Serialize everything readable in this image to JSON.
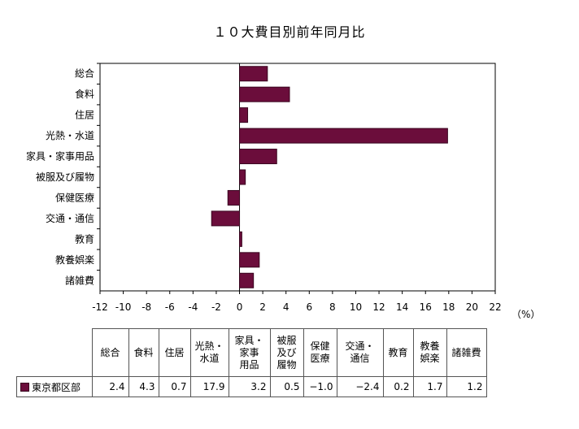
{
  "title": "１０大費目別前年同月比",
  "unit": "（%）",
  "colors": {
    "bar": "#6b0d3b",
    "bar_stroke": "#3a0620",
    "plot_border": "#000000"
  },
  "chart_data": {
    "type": "bar",
    "orientation": "horizontal",
    "title": "１０大費目別前年同月比",
    "categories": [
      "総合",
      "食料",
      "住居",
      "光熱・水道",
      "家具・家事用品",
      "被服及び履物",
      "保健医療",
      "交通・通信",
      "教育",
      "教養娯楽",
      "諸雑費"
    ],
    "series": [
      {
        "name": "東京都区部",
        "values": [
          2.4,
          4.3,
          0.7,
          17.9,
          3.2,
          0.5,
          -1.0,
          -2.4,
          0.2,
          1.7,
          1.2
        ]
      }
    ],
    "xlim": [
      -12,
      22
    ],
    "xticks": [
      -12,
      -10,
      -8,
      -6,
      -4,
      -2,
      0,
      2,
      4,
      6,
      8,
      10,
      12,
      14,
      16,
      18,
      20,
      22
    ],
    "xunit": "（%）",
    "grid": false,
    "legend": "table-below"
  },
  "table": {
    "headers": [
      [
        "総合"
      ],
      [
        "食料"
      ],
      [
        "住居"
      ],
      [
        "光熱・",
        "水道"
      ],
      [
        "家具・",
        "家事",
        "用品"
      ],
      [
        "被服",
        "及び",
        "履物"
      ],
      [
        "保健",
        "医療"
      ],
      [
        "交通・",
        "通信"
      ],
      [
        "教育"
      ],
      [
        "教養",
        "娯楽"
      ],
      [
        "諸雑費"
      ]
    ],
    "row_label": "東京都区部",
    "values": [
      "2.4",
      "4.3",
      "0.7",
      "17.9",
      "3.2",
      "0.5",
      "−1.0",
      "−2.4",
      "0.2",
      "1.7",
      "1.2"
    ]
  }
}
